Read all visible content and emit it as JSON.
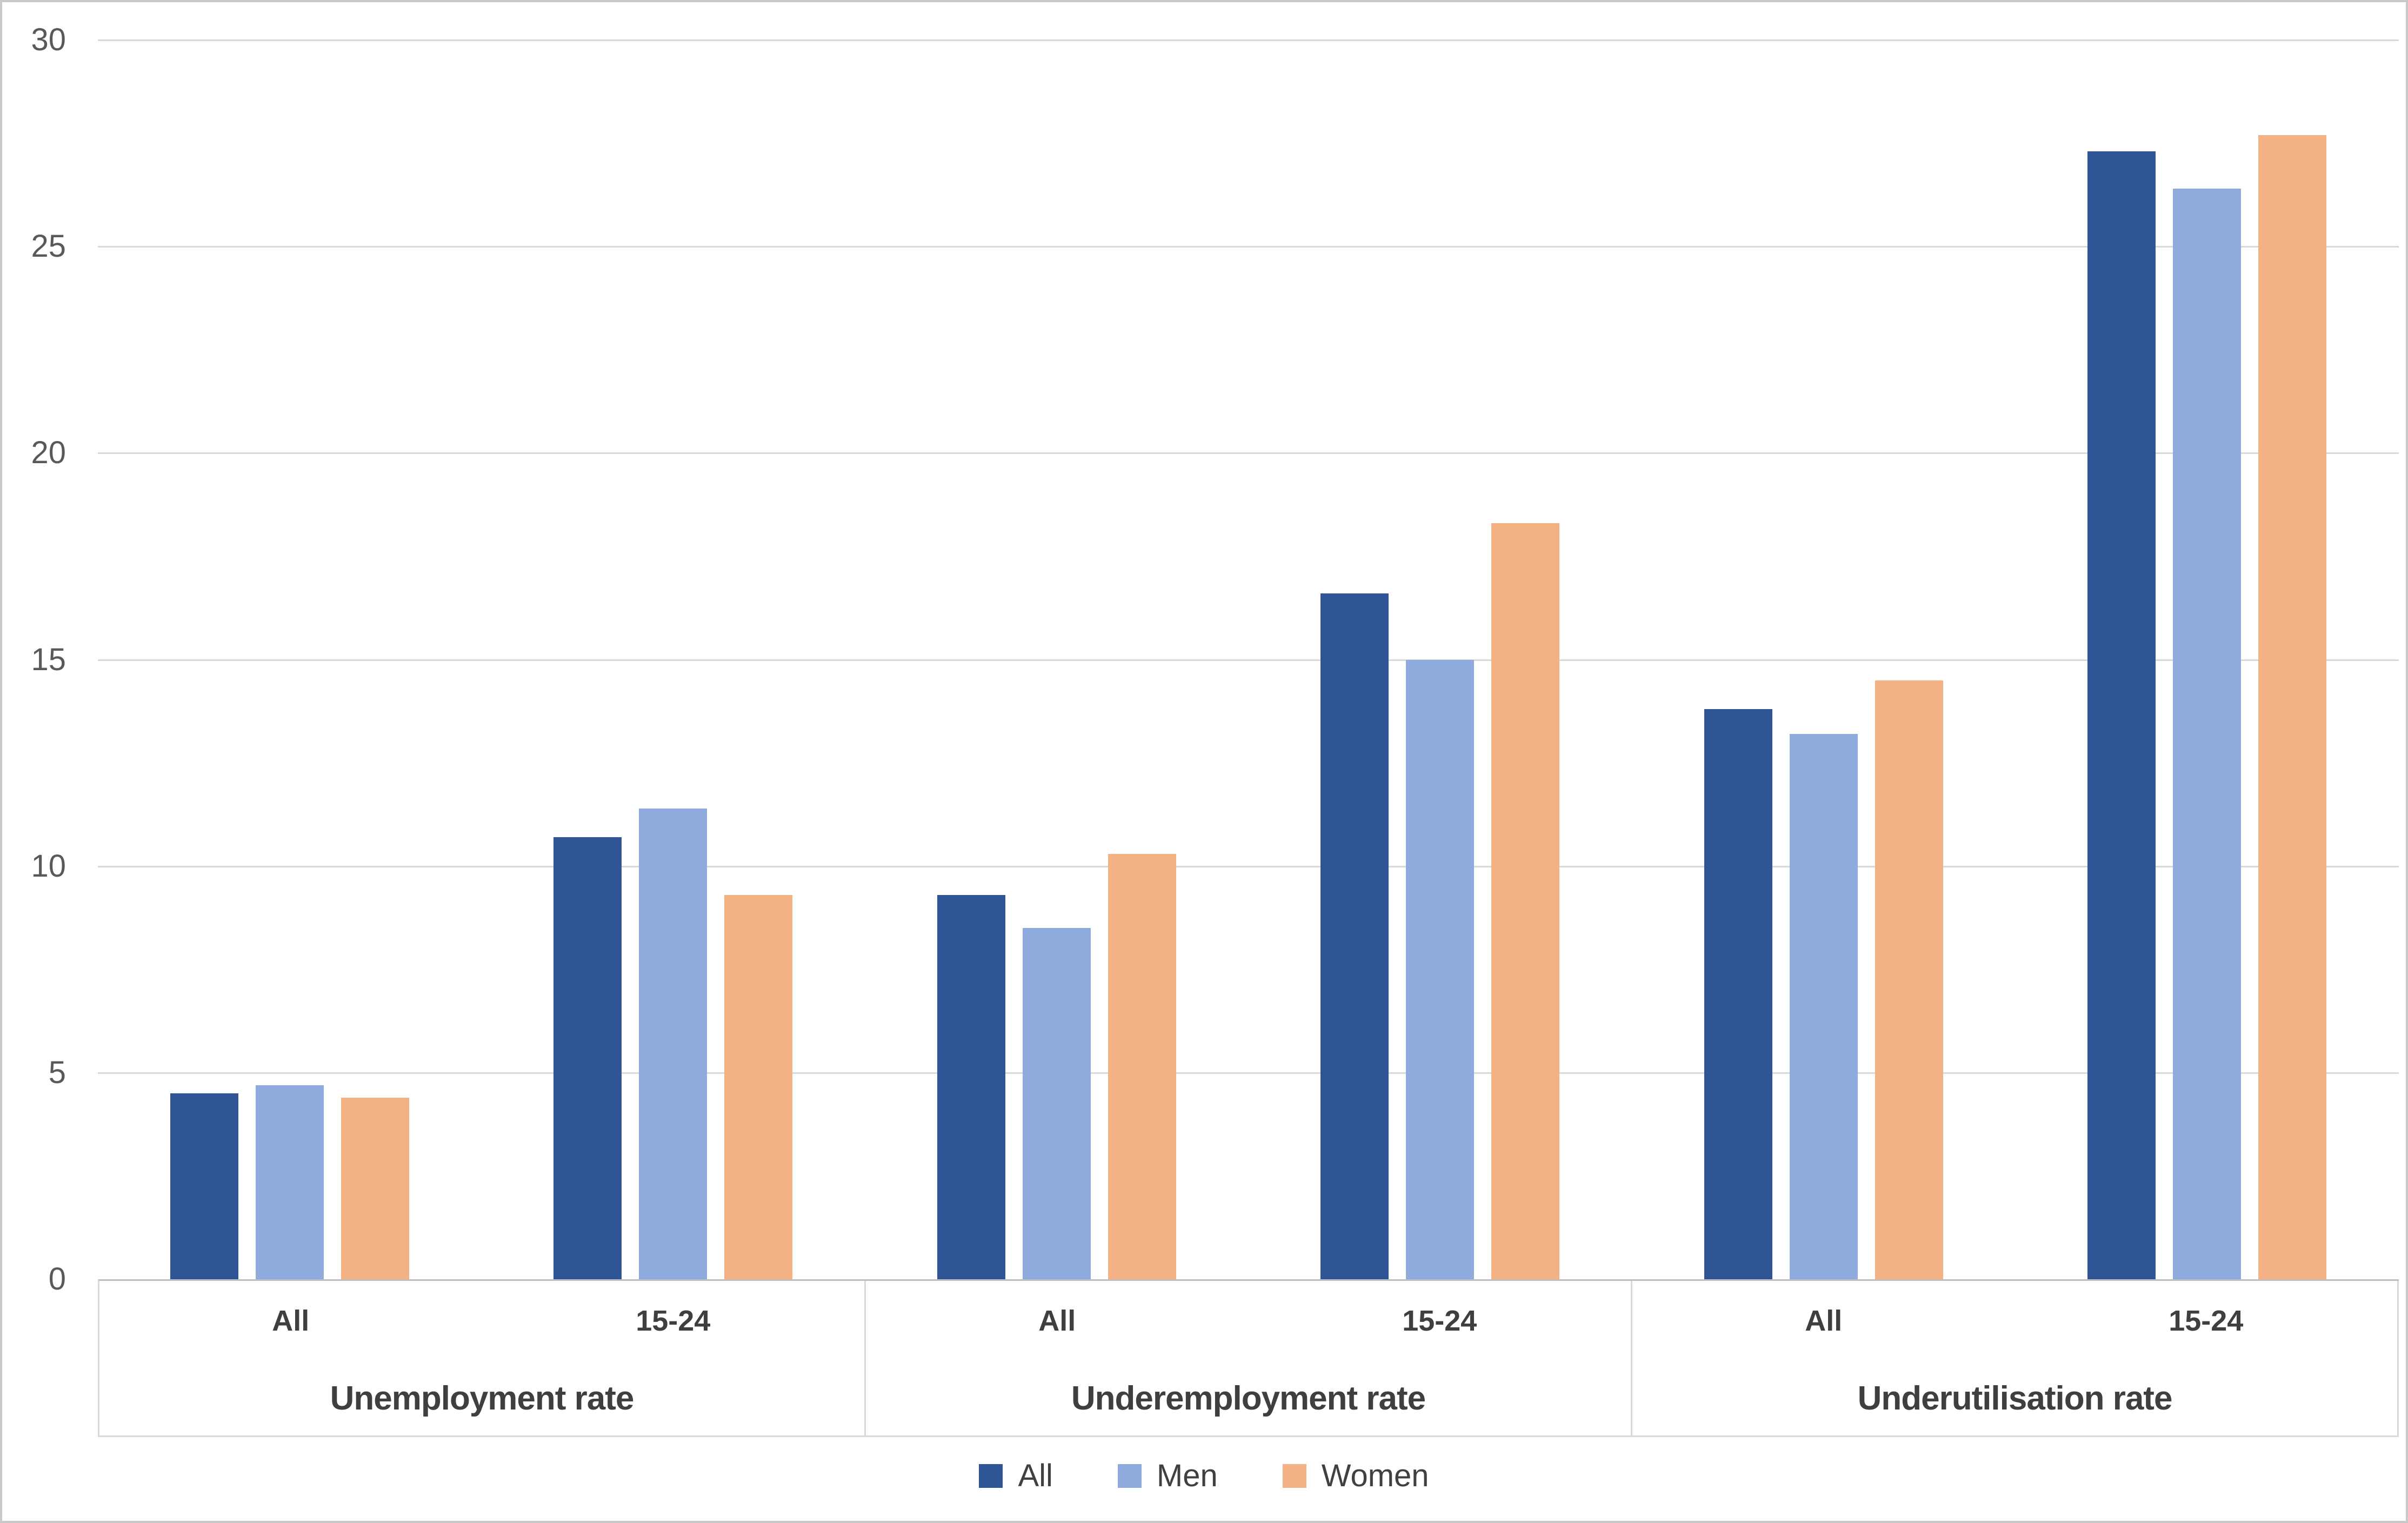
{
  "chart_data": {
    "type": "bar",
    "title": "",
    "y_axis": {
      "min": 0,
      "max": 30,
      "tick_step": 5,
      "tick_labels": [
        "0",
        "5",
        "10",
        "15",
        "20",
        "25",
        "30"
      ]
    },
    "grid": true,
    "legend_position": "bottom",
    "category_groups": [
      {
        "label": "Unemployment rate",
        "subcategories": [
          "All",
          "15-24"
        ]
      },
      {
        "label": "Underemployment rate",
        "subcategories": [
          "All",
          "15-24"
        ]
      },
      {
        "label": "Underutilisation rate",
        "subcategories": [
          "All",
          "15-24"
        ]
      }
    ],
    "series": [
      {
        "name": "All",
        "color": "#2F5597",
        "values": [
          4.5,
          10.7,
          9.3,
          16.6,
          13.8,
          27.3
        ]
      },
      {
        "name": "Men",
        "color": "#8FAADC",
        "values": [
          4.7,
          11.4,
          8.5,
          15.0,
          13.2,
          26.4
        ]
      },
      {
        "name": "Women",
        "color": "#F4B183",
        "values": [
          4.4,
          9.3,
          10.3,
          18.3,
          14.5,
          27.7
        ]
      }
    ]
  },
  "legend": {
    "items": [
      {
        "label": "All",
        "color": "#2F5597"
      },
      {
        "label": "Men",
        "color": "#8FAADC"
      },
      {
        "label": "Women",
        "color": "#F4B183"
      }
    ]
  },
  "colors": {
    "background": "#FFFFFF",
    "border": "#C9C9C9",
    "gridline": "#D9D9D9",
    "axis_line": "#BFBFBF",
    "tick_text": "#595959",
    "label_text": "#3F3F3F"
  }
}
